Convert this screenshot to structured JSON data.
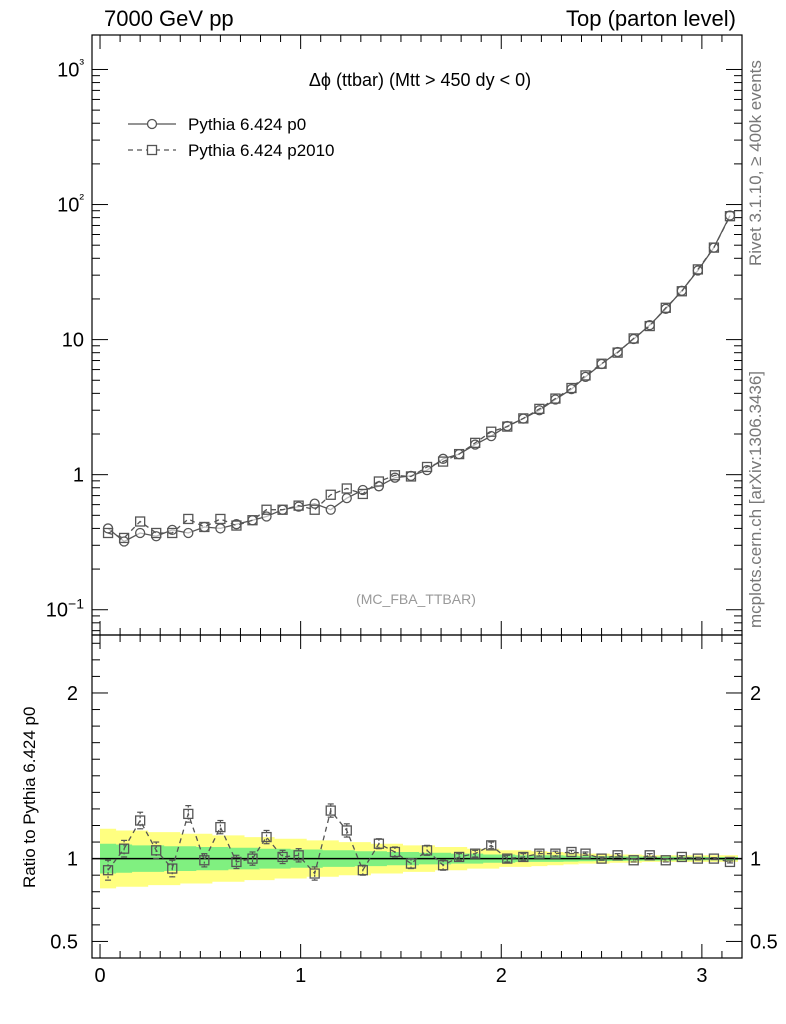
{
  "header": {
    "left": "7000 GeV pp",
    "right": "Top (parton level)"
  },
  "side_labels": {
    "rivet": "Rivet 3.1.10, ≥ 400k events",
    "mcplots": "mcplots.cern.ch [arXiv:1306.3436]"
  },
  "chart_data": {
    "type": "line",
    "title": "Δϕ (ttbar) (Mtt > 450 dy < 0)",
    "watermark": "(MC_FBA_TTBAR)",
    "ylabel_ratio": "Ratio to Pythia 6.424 p0",
    "x_ticks": [
      "0",
      "1",
      "2",
      "3"
    ],
    "y_ticks_main": [
      "10−1",
      "1",
      "10",
      "10²",
      "10³"
    ],
    "y_ticks_ratio": [
      "0.5",
      "1",
      "2"
    ],
    "xlim": [
      -0.04,
      3.2
    ],
    "ylim_main": [
      0.065,
      1800
    ],
    "ylim_ratio": [
      0.4,
      2.35
    ],
    "yscale": "log",
    "legend_position": "top-left",
    "x": [
      0.04,
      0.12,
      0.2,
      0.28,
      0.36,
      0.44,
      0.52,
      0.6,
      0.68,
      0.76,
      0.83,
      0.91,
      0.99,
      1.07,
      1.15,
      1.23,
      1.31,
      1.39,
      1.47,
      1.55,
      1.63,
      1.71,
      1.79,
      1.87,
      1.95,
      2.03,
      2.11,
      2.19,
      2.27,
      2.35,
      2.42,
      2.5,
      2.58,
      2.66,
      2.74,
      2.82,
      2.9,
      2.98,
      3.06,
      3.14
    ],
    "series": [
      {
        "name": "Pythia 6.424 p0",
        "marker": "circle",
        "dash": "solid",
        "values": [
          0.4,
          0.32,
          0.37,
          0.35,
          0.39,
          0.37,
          0.41,
          0.4,
          0.43,
          0.46,
          0.49,
          0.55,
          0.58,
          0.61,
          0.55,
          0.67,
          0.77,
          0.82,
          0.95,
          0.98,
          1.08,
          1.31,
          1.42,
          1.67,
          1.93,
          2.29,
          2.6,
          3.0,
          3.6,
          4.3,
          5.3,
          6.6,
          8.1,
          10.1,
          12.8,
          16.9,
          23.0,
          32.5,
          48.0,
          83.0
        ]
      },
      {
        "name": "Pythia 6.424 p2010",
        "marker": "square",
        "dash": "dashed",
        "values": [
          0.37,
          0.34,
          0.45,
          0.37,
          0.37,
          0.47,
          0.41,
          0.47,
          0.42,
          0.46,
          0.55,
          0.55,
          0.59,
          0.55,
          0.71,
          0.79,
          0.72,
          0.89,
          0.99,
          0.97,
          1.14,
          1.25,
          1.42,
          1.72,
          2.08,
          2.27,
          2.61,
          3.07,
          3.66,
          4.38,
          5.43,
          6.63,
          8.01,
          10.2,
          12.6,
          17.2,
          22.8,
          33.1,
          48.0,
          82.0
        ]
      }
    ],
    "ratio": [
      0.93,
      1.06,
      1.23,
      1.05,
      0.94,
      1.27,
      0.99,
      1.19,
      0.98,
      1.0,
      1.13,
      1.01,
      1.02,
      0.91,
      1.29,
      1.17,
      0.93,
      1.09,
      1.04,
      0.97,
      1.05,
      0.96,
      1.01,
      1.03,
      1.08,
      1.0,
      1.01,
      1.03,
      1.03,
      1.04,
      1.03,
      1.0,
      1.02,
      0.99,
      1.02,
      0.99,
      1.01,
      1.0,
      1.0,
      0.98
    ],
    "ratio_err": [
      0.06,
      0.05,
      0.05,
      0.05,
      0.05,
      0.05,
      0.04,
      0.04,
      0.04,
      0.04,
      0.04,
      0.04,
      0.04,
      0.04,
      0.04,
      0.04,
      0.03,
      0.03,
      0.03,
      0.03,
      0.03,
      0.03,
      0.02,
      0.02,
      0.02,
      0.02,
      0.02,
      0.015,
      0.015,
      0.01,
      0.01,
      0.01,
      0.01,
      0.01,
      0.01,
      0.01,
      0.008,
      0.008,
      0.006,
      0.006
    ],
    "band_yellow_half": [
      0.18,
      0.17,
      0.17,
      0.16,
      0.16,
      0.15,
      0.15,
      0.14,
      0.14,
      0.13,
      0.13,
      0.12,
      0.12,
      0.11,
      0.11,
      0.1,
      0.1,
      0.09,
      0.09,
      0.08,
      0.08,
      0.07,
      0.07,
      0.06,
      0.06,
      0.05,
      0.05,
      0.045,
      0.04,
      0.035,
      0.03,
      0.03,
      0.025,
      0.025,
      0.02,
      0.02,
      0.02,
      0.02,
      0.02,
      0.02
    ],
    "band_green_half": [
      0.09,
      0.085,
      0.08,
      0.08,
      0.075,
      0.075,
      0.07,
      0.07,
      0.065,
      0.065,
      0.06,
      0.06,
      0.055,
      0.055,
      0.05,
      0.05,
      0.045,
      0.045,
      0.04,
      0.04,
      0.035,
      0.035,
      0.03,
      0.03,
      0.025,
      0.025,
      0.02,
      0.02,
      0.02,
      0.018,
      0.016,
      0.015,
      0.014,
      0.013,
      0.012,
      0.012,
      0.011,
      0.011,
      0.01,
      0.01
    ],
    "colors": {
      "line": "#555555",
      "yellow_band": "#ffff80",
      "green_band": "#80f080"
    }
  }
}
